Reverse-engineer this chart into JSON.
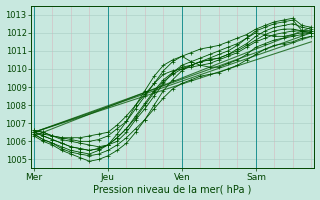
{
  "xlabel": "Pression niveau de la mer( hPa )",
  "ylim": [
    1004.5,
    1013.5
  ],
  "yticks": [
    1005,
    1006,
    1007,
    1008,
    1009,
    1010,
    1011,
    1012,
    1013
  ],
  "xtick_labels": [
    "Mer",
    "Jeu",
    "Ven",
    "Sam"
  ],
  "xtick_positions": [
    0,
    24,
    48,
    72
  ],
  "xlim": [
    -1,
    91
  ],
  "bg_color": "#c8e8df",
  "vgrid_color": "#d8b8c0",
  "hgrid_color": "#a8ccc4",
  "line_color": "#005500",
  "lines": [
    [
      0,
      1006.5,
      3,
      1006.4,
      6,
      1006.3,
      9,
      1006.1,
      12,
      1006.0,
      15,
      1005.9,
      18,
      1005.8,
      21,
      1005.7,
      24,
      1005.8,
      27,
      1006.0,
      30,
      1006.5,
      33,
      1007.2,
      36,
      1007.8,
      39,
      1008.5,
      42,
      1009.2,
      45,
      1009.8,
      48,
      1010.2,
      51,
      1010.4,
      54,
      1010.6,
      57,
      1010.8,
      60,
      1011.0,
      63,
      1011.2,
      66,
      1011.4,
      69,
      1011.7,
      72,
      1012.0,
      75,
      1011.9,
      78,
      1011.8,
      81,
      1011.8,
      84,
      1011.9,
      87,
      1012.0,
      90,
      1012.0
    ],
    [
      0,
      1006.3,
      3,
      1006.0,
      6,
      1005.8,
      9,
      1005.5,
      12,
      1005.3,
      15,
      1005.1,
      18,
      1004.9,
      21,
      1005.0,
      24,
      1005.2,
      27,
      1005.5,
      30,
      1005.9,
      33,
      1006.5,
      36,
      1007.2,
      39,
      1008.0,
      42,
      1008.8,
      45,
      1009.4,
      48,
      1009.9,
      51,
      1010.2,
      54,
      1010.4,
      57,
      1010.6,
      60,
      1010.8,
      63,
      1011.0,
      66,
      1011.3,
      69,
      1011.7,
      72,
      1012.1,
      75,
      1012.3,
      78,
      1012.5,
      81,
      1012.6,
      84,
      1012.7,
      87,
      1012.1,
      90,
      1012.0
    ],
    [
      0,
      1006.5,
      3,
      1006.3,
      6,
      1006.1,
      9,
      1005.9,
      12,
      1005.7,
      15,
      1005.6,
      18,
      1005.5,
      21,
      1005.6,
      24,
      1005.8,
      27,
      1006.2,
      30,
      1006.7,
      33,
      1007.3,
      36,
      1008.0,
      39,
      1008.7,
      42,
      1009.3,
      45,
      1009.7,
      48,
      1010.0,
      51,
      1010.2,
      54,
      1010.4,
      57,
      1010.5,
      60,
      1010.6,
      63,
      1010.8,
      66,
      1011.0,
      69,
      1011.3,
      72,
      1011.6,
      75,
      1011.9,
      78,
      1012.1,
      81,
      1012.2,
      84,
      1012.2,
      87,
      1012.1,
      90,
      1012.1
    ],
    [
      0,
      1006.6,
      3,
      1006.5,
      6,
      1006.3,
      9,
      1006.2,
      12,
      1006.1,
      15,
      1006.0,
      18,
      1006.0,
      21,
      1006.1,
      24,
      1006.3,
      27,
      1006.7,
      30,
      1007.1,
      33,
      1007.8,
      36,
      1008.5,
      39,
      1009.2,
      42,
      1009.9,
      45,
      1010.4,
      48,
      1010.7,
      51,
      1010.9,
      54,
      1011.1,
      57,
      1011.2,
      60,
      1011.3,
      63,
      1011.5,
      66,
      1011.7,
      69,
      1011.9,
      72,
      1012.2,
      75,
      1012.4,
      78,
      1012.6,
      81,
      1012.7,
      84,
      1012.8,
      87,
      1012.4,
      90,
      1012.3
    ],
    [
      0,
      1006.4,
      3,
      1006.1,
      6,
      1005.9,
      9,
      1005.6,
      12,
      1005.4,
      15,
      1005.3,
      18,
      1005.2,
      21,
      1005.3,
      24,
      1005.5,
      27,
      1005.8,
      30,
      1006.2,
      33,
      1006.7,
      36,
      1007.2,
      39,
      1007.8,
      42,
      1008.4,
      45,
      1008.9,
      48,
      1009.2,
      51,
      1009.4,
      54,
      1009.6,
      57,
      1009.7,
      60,
      1009.8,
      63,
      1010.0,
      66,
      1010.2,
      69,
      1010.5,
      72,
      1010.8,
      75,
      1011.1,
      78,
      1011.3,
      81,
      1011.4,
      84,
      1011.5,
      87,
      1011.7,
      90,
      1011.8
    ],
    [
      0,
      1006.5,
      3,
      1006.3,
      6,
      1006.1,
      9,
      1005.9,
      12,
      1005.7,
      15,
      1005.6,
      18,
      1005.5,
      21,
      1005.6,
      24,
      1005.8,
      27,
      1006.2,
      30,
      1006.7,
      33,
      1007.4,
      36,
      1008.1,
      39,
      1008.8,
      42,
      1009.4,
      45,
      1009.8,
      48,
      1010.1,
      51,
      1010.2,
      54,
      1010.4,
      57,
      1010.5,
      60,
      1010.6,
      63,
      1010.8,
      66,
      1011.1,
      69,
      1011.4,
      72,
      1011.8,
      75,
      1012.1,
      78,
      1012.3,
      81,
      1012.4,
      84,
      1012.5,
      87,
      1012.3,
      90,
      1012.2
    ],
    [
      0,
      1006.4,
      3,
      1006.1,
      6,
      1005.9,
      9,
      1005.7,
      12,
      1005.5,
      15,
      1005.4,
      18,
      1005.3,
      21,
      1005.5,
      24,
      1005.8,
      27,
      1006.4,
      30,
      1007.1,
      33,
      1008.0,
      36,
      1008.8,
      39,
      1009.6,
      42,
      1010.2,
      45,
      1010.5,
      48,
      1010.7,
      51,
      1010.4,
      54,
      1010.2,
      57,
      1010.1,
      60,
      1010.1,
      63,
      1010.3,
      66,
      1010.5,
      69,
      1010.8,
      72,
      1011.2,
      75,
      1011.4,
      78,
      1011.6,
      81,
      1011.7,
      84,
      1011.8,
      87,
      1011.9,
      90,
      1012.0
    ],
    [
      0,
      1006.6,
      3,
      1006.5,
      6,
      1006.3,
      9,
      1006.2,
      12,
      1006.2,
      15,
      1006.2,
      18,
      1006.3,
      21,
      1006.4,
      24,
      1006.5,
      27,
      1006.9,
      30,
      1007.4,
      33,
      1008.0,
      36,
      1008.6,
      39,
      1009.2,
      42,
      1009.7,
      45,
      1009.9,
      48,
      1010.0,
      51,
      1010.1,
      54,
      1010.2,
      57,
      1010.3,
      60,
      1010.5,
      63,
      1010.7,
      66,
      1010.9,
      69,
      1011.2,
      72,
      1011.5,
      75,
      1011.7,
      78,
      1011.9,
      81,
      1012.0,
      84,
      1012.1,
      87,
      1012.1,
      90,
      1012.1
    ]
  ],
  "straight_lines": [
    [
      0,
      1006.5,
      90,
      1012.0
    ],
    [
      0,
      1006.5,
      90,
      1011.8
    ],
    [
      0,
      1006.3,
      90,
      1012.3
    ],
    [
      0,
      1006.5,
      90,
      1011.5
    ]
  ],
  "figsize": [
    3.2,
    2.0
  ],
  "dpi": 100
}
